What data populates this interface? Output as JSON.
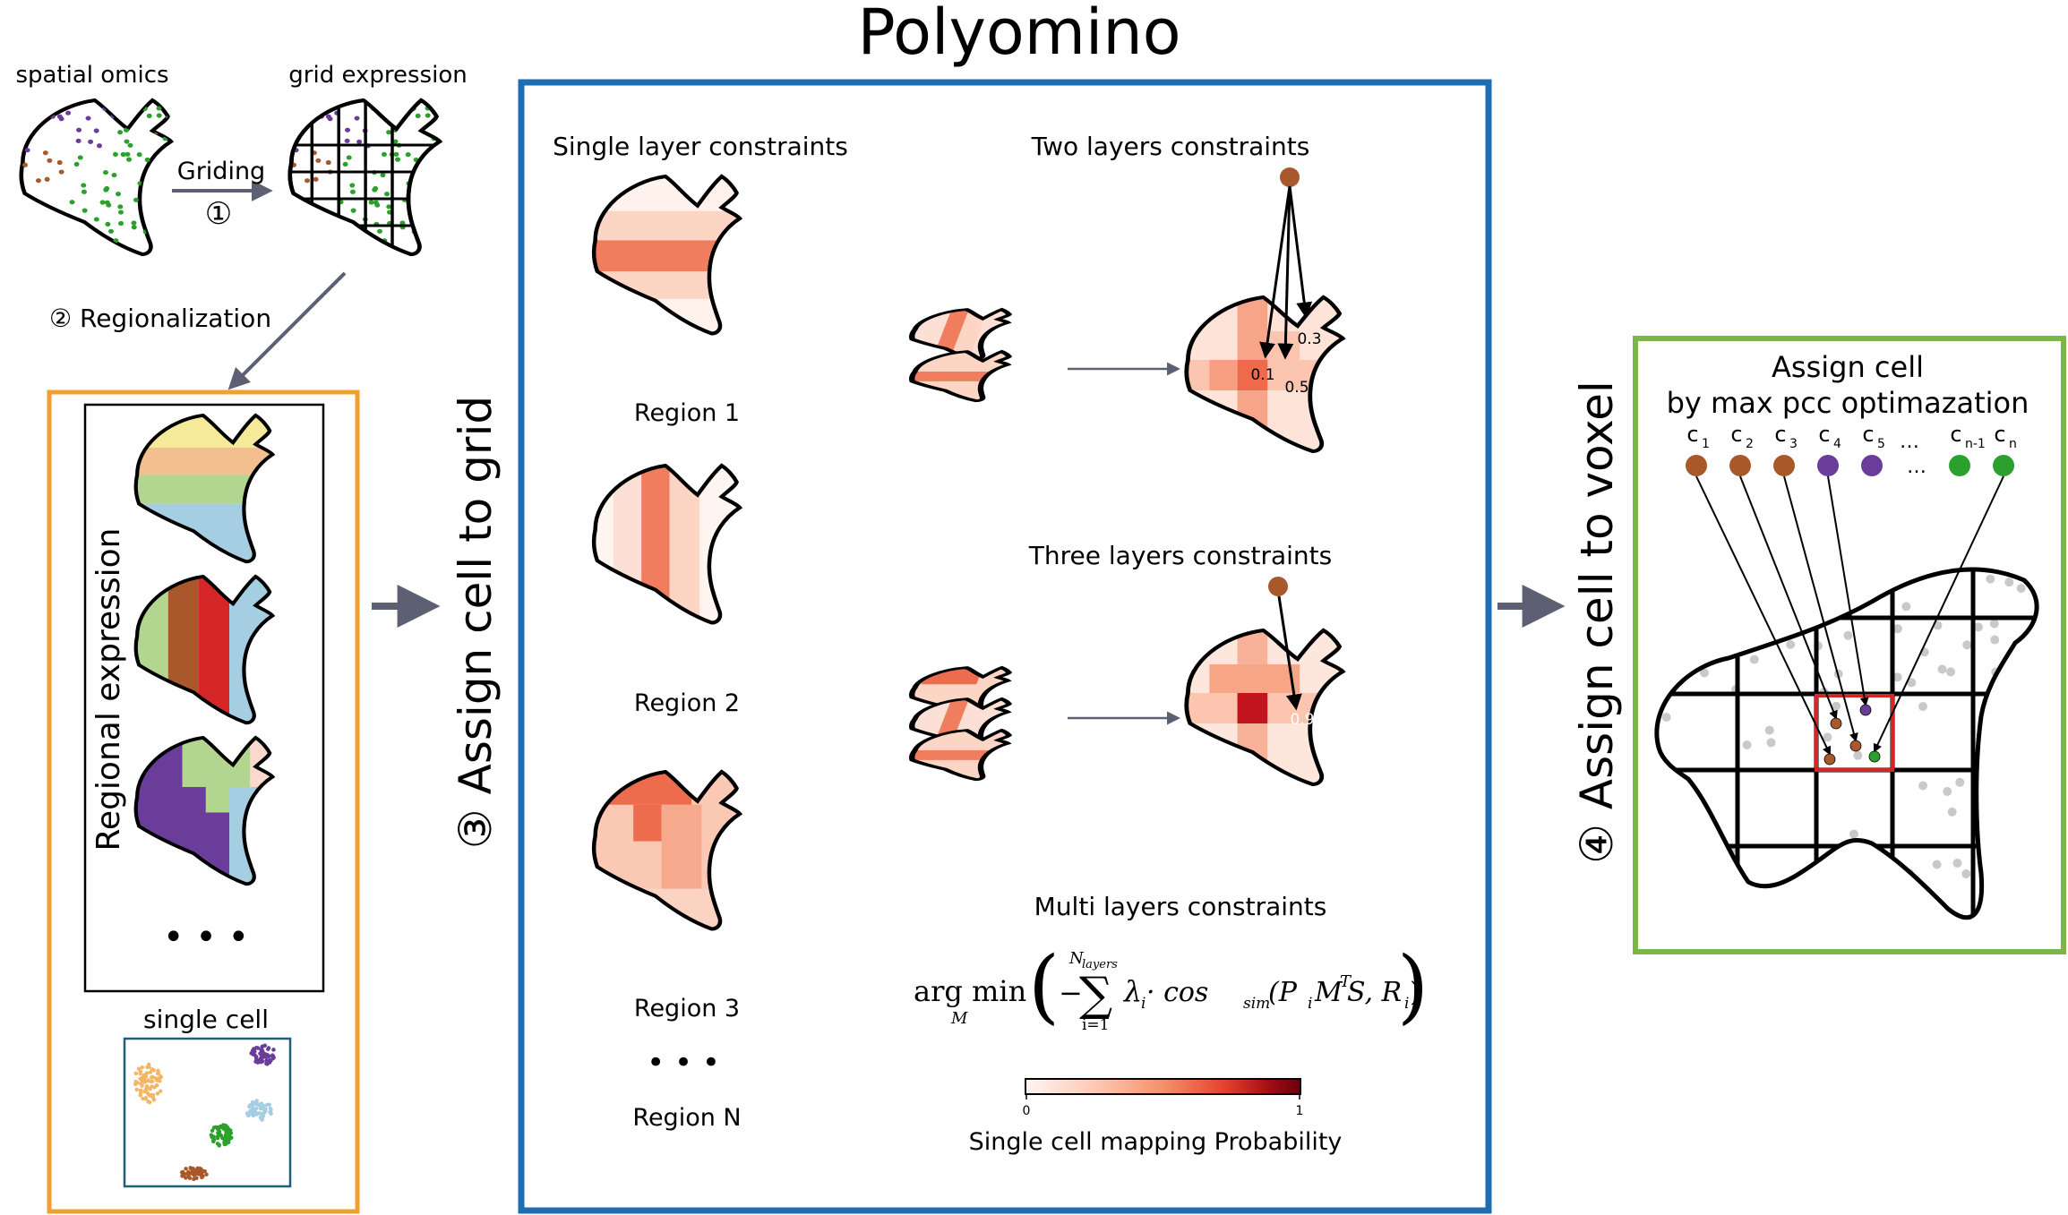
{
  "title": "Polyomino",
  "left": {
    "spatial_omics_label": "spatial omics",
    "grid_expression_label": "grid expression",
    "griding_label": "Griding",
    "step1": "①",
    "step2": "② Regionalization",
    "regional_expression_label": "Regional expression",
    "ellipsis": "• • •",
    "single_cell_label": "single cell"
  },
  "step3_label": "③ Assign cell to grid",
  "step4_label": "④ Assign cell to voxel",
  "center": {
    "single_layer_title": "Single layer constraints",
    "regions": [
      "Region 1",
      "Region 2",
      "Region 3",
      "Region N"
    ],
    "region_dots": "• • •",
    "two_layers_title": "Two layers constraints",
    "two_layers_values": [
      "0.3",
      "0.1",
      "0.5"
    ],
    "three_layers_title": "Three layers constraints",
    "three_layers_value": "0.9",
    "multi_layers_title": "Multi layers constraints",
    "formula": {
      "argmin": "arg min",
      "sub_m": "M",
      "sum_top": "N",
      "sum_top_sub": "layers",
      "sum_bottom": "i=1",
      "minus": "−",
      "sigma": "∑",
      "body": "λ",
      "body_sub": "i",
      "dot_cos": " · cos",
      "cos_sub": "sim",
      "args_open": "(P",
      "args_p_sub": "i",
      "args_m": "M",
      "args_t": "T",
      "args_s": " S, R",
      "args_r_sub": "i",
      "args_close": ")"
    },
    "colorbar": {
      "min_label": "0",
      "max_label": "1",
      "caption": "Single cell mapping Probability",
      "colors": [
        "#fff5f0",
        "#fdcab5",
        "#f5906c",
        "#e5432f",
        "#a50f15",
        "#67000d"
      ]
    }
  },
  "right": {
    "title_line1": "Assign cell",
    "title_line2": "by max pcc optimazation",
    "cells": [
      {
        "label": "c",
        "sub": "1",
        "color": "#a8582a"
      },
      {
        "label": "c",
        "sub": "2",
        "color": "#a8582a"
      },
      {
        "label": "c",
        "sub": "3",
        "color": "#a8582a"
      },
      {
        "label": "c",
        "sub": "4",
        "color": "#6a3d9a"
      },
      {
        "label": "c",
        "sub": "5",
        "color": "#6a3d9a"
      },
      {
        "label": "c",
        "sub": "n-1",
        "color": "#2ca02c"
      },
      {
        "label": "c",
        "sub": "n",
        "color": "#2ca02c"
      }
    ],
    "dots_small": "…",
    "dots_small2": "…"
  },
  "colors": {
    "blue_frame": "#1f6db1",
    "orange_frame": "#f0a030",
    "green_frame": "#7ab648",
    "arrow_gray": "#5d5f73",
    "red_highlight": "#d62728",
    "brown": "#a8582a",
    "purple": "#6a3d9a",
    "green": "#2ca02c",
    "blue_dot": "#1f77b4",
    "light_blue": "#a6cee3"
  }
}
